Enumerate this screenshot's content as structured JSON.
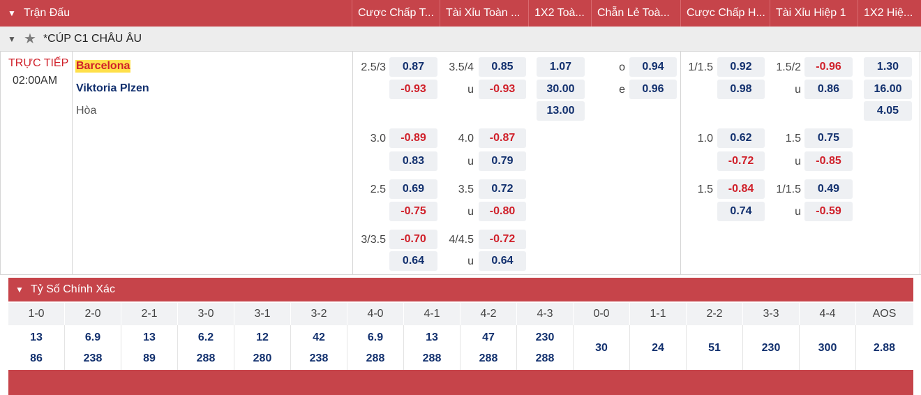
{
  "header": {
    "match_label": "Trận Đấu",
    "columns": [
      "Cược Chấp T...",
      "Tài Xỉu Toàn ...",
      "1X2 Toà...",
      "Chẵn Lẻ Toà...",
      "Cược Chấp H...",
      "Tài Xỉu Hiệp 1",
      "1X2 Hiệ..."
    ]
  },
  "league": {
    "name": "*CÚP C1 CHÂU ÂU"
  },
  "match": {
    "status": "TRỰC TIẾP",
    "time": "02:00AM",
    "home": "Barcelona",
    "away": "Viktoria Plzen",
    "draw": "Hòa"
  },
  "odds": {
    "hdp_ft": [
      {
        "line": "2.5/3",
        "home": "0.87",
        "away": "-0.93"
      },
      {
        "line": "3.0",
        "home": "-0.89",
        "away": "0.83"
      },
      {
        "line": "2.5",
        "home": "0.69",
        "away": "-0.75"
      },
      {
        "line": "3/3.5",
        "home": "-0.70",
        "away": "0.64"
      }
    ],
    "ou_ft": [
      {
        "line": "3.5/4",
        "u": "u",
        "over": "0.85",
        "under": "-0.93"
      },
      {
        "line": "4.0",
        "u": "u",
        "over": "-0.87",
        "under": "0.79"
      },
      {
        "line": "3.5",
        "u": "u",
        "over": "0.72",
        "under": "-0.80"
      },
      {
        "line": "4/4.5",
        "u": "u",
        "over": "-0.72",
        "under": "0.64"
      }
    ],
    "x12_ft": [
      "1.07",
      "30.00",
      "13.00"
    ],
    "oe_ft": [
      {
        "label": "o",
        "value": "0.94"
      },
      {
        "label": "e",
        "value": "0.96"
      }
    ],
    "hdp_h1": [
      {
        "line": "1/1.5",
        "home": "0.92",
        "away": "0.98"
      },
      {
        "line": "1.0",
        "home": "0.62",
        "away": "-0.72"
      },
      {
        "line": "1.5",
        "home": "-0.84",
        "away": "0.74"
      }
    ],
    "ou_h1": [
      {
        "line": "1.5/2",
        "u": "u",
        "over": "-0.96",
        "under": "0.86"
      },
      {
        "line": "1.5",
        "u": "u",
        "over": "0.75",
        "under": "-0.85"
      },
      {
        "line": "1/1.5",
        "u": "u",
        "over": "0.49",
        "under": "-0.59"
      }
    ],
    "x12_h1": [
      "1.30",
      "16.00",
      "4.05"
    ]
  },
  "correct_score": {
    "title": "Tỷ Số Chính Xác",
    "labels": [
      "1-0",
      "2-0",
      "2-1",
      "3-0",
      "3-1",
      "3-2",
      "4-0",
      "4-1",
      "4-2",
      "4-3",
      "0-0",
      "1-1",
      "2-2",
      "3-3",
      "4-4",
      "AOS"
    ],
    "top": [
      "13",
      "6.9",
      "13",
      "6.2",
      "12",
      "42",
      "6.9",
      "13",
      "47",
      "230"
    ],
    "bottom": [
      "86",
      "238",
      "89",
      "288",
      "280",
      "238",
      "288",
      "288",
      "288",
      "288"
    ],
    "single": [
      "30",
      "24",
      "51",
      "230",
      "300",
      "2.88"
    ]
  }
}
